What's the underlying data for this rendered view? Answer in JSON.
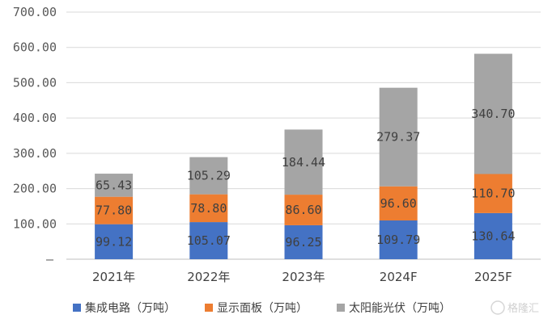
{
  "chart_data": {
    "type": "bar",
    "stacked": true,
    "title": "",
    "xlabel": "",
    "ylabel": "",
    "categories": [
      "2021年",
      "2022年",
      "2023年",
      "2024F",
      "2025F"
    ],
    "y_tick_labels": [
      "–",
      "100.00",
      "200.00",
      "300.00",
      "400.00",
      "500.00",
      "600.00",
      "700.00"
    ],
    "ylim": [
      0,
      700
    ],
    "grid": true,
    "legend_position": "bottom",
    "series": [
      {
        "name": "集成电路（万吨）",
        "color": "#4472C4",
        "values": [
          99.12,
          105.07,
          96.25,
          109.79,
          130.64
        ],
        "labels": [
          "99.12",
          "105.07",
          "96.25",
          "109.79",
          "130.64"
        ]
      },
      {
        "name": "显示面板（万吨）",
        "color": "#ED7D31",
        "values": [
          77.8,
          78.8,
          86.6,
          96.6,
          110.7
        ],
        "labels": [
          "77.80",
          "78.80",
          "86.60",
          "96.60",
          "110.70"
        ]
      },
      {
        "name": "太阳能光伏（万吨）",
        "color": "#A5A5A5",
        "values": [
          65.43,
          105.29,
          184.44,
          279.37,
          340.7
        ],
        "labels": [
          "65.43",
          "105.29",
          "184.44",
          "279.37",
          "340.70"
        ]
      }
    ]
  },
  "watermark": {
    "text": "格隆汇"
  }
}
